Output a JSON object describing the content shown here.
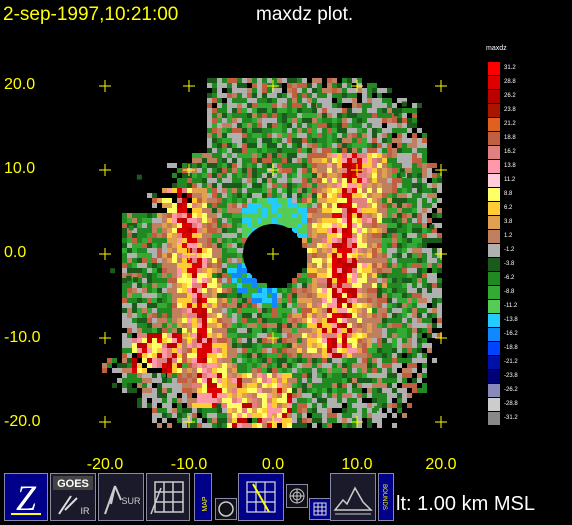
{
  "title": {
    "datetime": "2-sep-1997,10:21:00",
    "plot_name": "maxdz plot."
  },
  "axes": {
    "y_ticks": [
      "20.0",
      "10.0",
      "0.0",
      "-10.0",
      "-20.0"
    ],
    "x_ticks": [
      "-20.0",
      "-10.0",
      "0.0",
      "10.0",
      "20.0"
    ]
  },
  "colorbar": {
    "title": "maxdz",
    "labels": [
      "31.2",
      "28.8",
      "26.2",
      "23.8",
      "21.2",
      "18.8",
      "16.2",
      "13.8",
      "11.2",
      "8.8",
      "6.2",
      "3.8",
      "1.2",
      "-1.2",
      "-3.8",
      "-6.2",
      "-8.8",
      "-11.2",
      "-13.8",
      "-16.2",
      "-18.8",
      "-21.2",
      "-23.8",
      "-26.2",
      "-28.8",
      "-31.2"
    ],
    "colors": [
      "#ff0000",
      "#dd0000",
      "#bb0000",
      "#aa1500",
      "#e06020",
      "#c06040",
      "#e08080",
      "#ff99aa",
      "#ffccdd",
      "#ffff66",
      "#ffcc33",
      "#e0a050",
      "#c08060",
      "#b0b0b0",
      "#1a5a1a",
      "#228822",
      "#33aa33",
      "#55cc55",
      "#22ccff",
      "#1188ff",
      "#0044ff",
      "#0011aa",
      "#000077",
      "#8888bb",
      "#cccccc",
      "#888888"
    ]
  },
  "toolbar": {
    "buttons": [
      {
        "name": "zoom-button",
        "label": "Z"
      },
      {
        "name": "goes-ir-button",
        "label": "GOES",
        "sub": "IR"
      },
      {
        "name": "sur-button",
        "label": "SUR"
      },
      {
        "name": "grid-button",
        "label": ""
      },
      {
        "name": "map-button",
        "label": "MAP"
      },
      {
        "name": "circle-button",
        "label": ""
      },
      {
        "name": "rhi-button",
        "label": ""
      },
      {
        "name": "rings-button",
        "label": ""
      },
      {
        "name": "small-grid-button",
        "label": ""
      },
      {
        "name": "terrain-button",
        "label": ""
      },
      {
        "name": "bounds-button",
        "label": "BOUNDS"
      }
    ],
    "altitude": "lt: 1.00 km MSL"
  }
}
